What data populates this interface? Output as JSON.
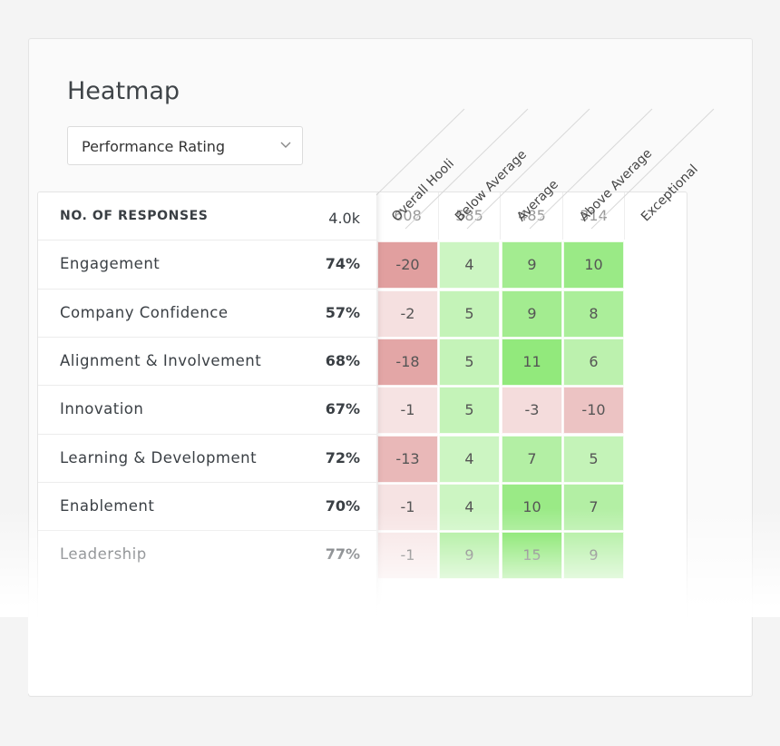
{
  "header": {
    "title": "Heatmap"
  },
  "dropdown": {
    "label": "Performance Rating"
  },
  "table": {
    "columns": [
      "Overall Hooli",
      "Below Average",
      "Average",
      "Above Average",
      "Exceptional"
    ],
    "header_row": {
      "label": "NO. OF RESPONSES",
      "overall": "4.0k",
      "values": [
        608,
        585,
        485,
        314
      ]
    },
    "rows": [
      {
        "label": "Engagement",
        "overall": "74%",
        "values": [
          -20,
          4,
          9,
          10
        ]
      },
      {
        "label": "Company Confidence",
        "overall": "57%",
        "values": [
          -2,
          5,
          9,
          8
        ]
      },
      {
        "label": "Alignment & Involvement",
        "overall": "68%",
        "values": [
          -18,
          5,
          11,
          6
        ]
      },
      {
        "label": "Innovation",
        "overall": "67%",
        "values": [
          -1,
          5,
          -3,
          -10
        ]
      },
      {
        "label": "Learning & Development",
        "overall": "72%",
        "values": [
          -13,
          4,
          7,
          5
        ]
      },
      {
        "label": "Enablement",
        "overall": "70%",
        "values": [
          -1,
          4,
          10,
          7
        ]
      },
      {
        "label": "Leadership",
        "overall": "77%",
        "values": [
          -1,
          9,
          15,
          9
        ]
      }
    ]
  }
}
